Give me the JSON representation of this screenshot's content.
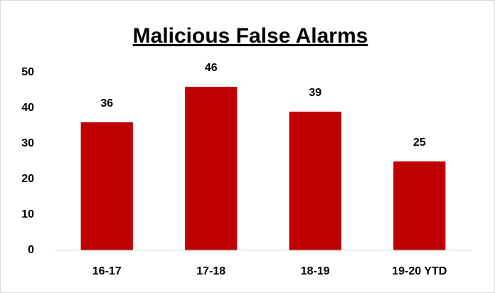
{
  "chart_data": {
    "type": "bar",
    "title": "Malicious False Alarms",
    "categories": [
      "16-17",
      "17-18",
      "18-19",
      "19-20 YTD"
    ],
    "values": [
      36,
      46,
      39,
      25
    ],
    "color": "#c00000",
    "ylim": [
      0,
      50
    ],
    "yticks": [
      0,
      10,
      20,
      30,
      40,
      50
    ],
    "grid": false
  }
}
